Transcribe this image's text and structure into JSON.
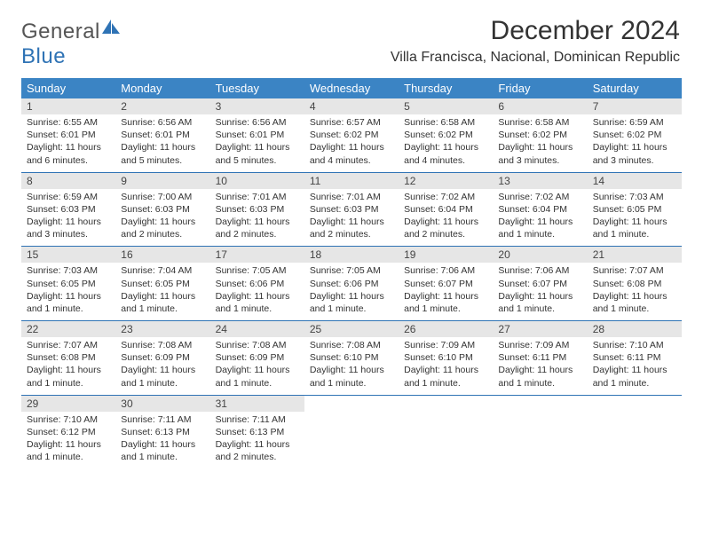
{
  "logo": {
    "part1": "General",
    "part2": "Blue"
  },
  "title": "December 2024",
  "subtitle": "Villa Francisca, Nacional, Dominican Republic",
  "colors": {
    "header_bg": "#3b84c4",
    "week_divider": "#2f73b5",
    "date_bg": "#e6e6e6",
    "logo_blue": "#2f73b5",
    "logo_gray": "#555555"
  },
  "days": [
    "Sunday",
    "Monday",
    "Tuesday",
    "Wednesday",
    "Thursday",
    "Friday",
    "Saturday"
  ],
  "weeks": [
    [
      {
        "n": "1",
        "sunrise": "6:55 AM",
        "sunset": "6:01 PM",
        "daylight": "11 hours and 6 minutes."
      },
      {
        "n": "2",
        "sunrise": "6:56 AM",
        "sunset": "6:01 PM",
        "daylight": "11 hours and 5 minutes."
      },
      {
        "n": "3",
        "sunrise": "6:56 AM",
        "sunset": "6:01 PM",
        "daylight": "11 hours and 5 minutes."
      },
      {
        "n": "4",
        "sunrise": "6:57 AM",
        "sunset": "6:02 PM",
        "daylight": "11 hours and 4 minutes."
      },
      {
        "n": "5",
        "sunrise": "6:58 AM",
        "sunset": "6:02 PM",
        "daylight": "11 hours and 4 minutes."
      },
      {
        "n": "6",
        "sunrise": "6:58 AM",
        "sunset": "6:02 PM",
        "daylight": "11 hours and 3 minutes."
      },
      {
        "n": "7",
        "sunrise": "6:59 AM",
        "sunset": "6:02 PM",
        "daylight": "11 hours and 3 minutes."
      }
    ],
    [
      {
        "n": "8",
        "sunrise": "6:59 AM",
        "sunset": "6:03 PM",
        "daylight": "11 hours and 3 minutes."
      },
      {
        "n": "9",
        "sunrise": "7:00 AM",
        "sunset": "6:03 PM",
        "daylight": "11 hours and 2 minutes."
      },
      {
        "n": "10",
        "sunrise": "7:01 AM",
        "sunset": "6:03 PM",
        "daylight": "11 hours and 2 minutes."
      },
      {
        "n": "11",
        "sunrise": "7:01 AM",
        "sunset": "6:03 PM",
        "daylight": "11 hours and 2 minutes."
      },
      {
        "n": "12",
        "sunrise": "7:02 AM",
        "sunset": "6:04 PM",
        "daylight": "11 hours and 2 minutes."
      },
      {
        "n": "13",
        "sunrise": "7:02 AM",
        "sunset": "6:04 PM",
        "daylight": "11 hours and 1 minute."
      },
      {
        "n": "14",
        "sunrise": "7:03 AM",
        "sunset": "6:05 PM",
        "daylight": "11 hours and 1 minute."
      }
    ],
    [
      {
        "n": "15",
        "sunrise": "7:03 AM",
        "sunset": "6:05 PM",
        "daylight": "11 hours and 1 minute."
      },
      {
        "n": "16",
        "sunrise": "7:04 AM",
        "sunset": "6:05 PM",
        "daylight": "11 hours and 1 minute."
      },
      {
        "n": "17",
        "sunrise": "7:05 AM",
        "sunset": "6:06 PM",
        "daylight": "11 hours and 1 minute."
      },
      {
        "n": "18",
        "sunrise": "7:05 AM",
        "sunset": "6:06 PM",
        "daylight": "11 hours and 1 minute."
      },
      {
        "n": "19",
        "sunrise": "7:06 AM",
        "sunset": "6:07 PM",
        "daylight": "11 hours and 1 minute."
      },
      {
        "n": "20",
        "sunrise": "7:06 AM",
        "sunset": "6:07 PM",
        "daylight": "11 hours and 1 minute."
      },
      {
        "n": "21",
        "sunrise": "7:07 AM",
        "sunset": "6:08 PM",
        "daylight": "11 hours and 1 minute."
      }
    ],
    [
      {
        "n": "22",
        "sunrise": "7:07 AM",
        "sunset": "6:08 PM",
        "daylight": "11 hours and 1 minute."
      },
      {
        "n": "23",
        "sunrise": "7:08 AM",
        "sunset": "6:09 PM",
        "daylight": "11 hours and 1 minute."
      },
      {
        "n": "24",
        "sunrise": "7:08 AM",
        "sunset": "6:09 PM",
        "daylight": "11 hours and 1 minute."
      },
      {
        "n": "25",
        "sunrise": "7:08 AM",
        "sunset": "6:10 PM",
        "daylight": "11 hours and 1 minute."
      },
      {
        "n": "26",
        "sunrise": "7:09 AM",
        "sunset": "6:10 PM",
        "daylight": "11 hours and 1 minute."
      },
      {
        "n": "27",
        "sunrise": "7:09 AM",
        "sunset": "6:11 PM",
        "daylight": "11 hours and 1 minute."
      },
      {
        "n": "28",
        "sunrise": "7:10 AM",
        "sunset": "6:11 PM",
        "daylight": "11 hours and 1 minute."
      }
    ],
    [
      {
        "n": "29",
        "sunrise": "7:10 AM",
        "sunset": "6:12 PM",
        "daylight": "11 hours and 1 minute."
      },
      {
        "n": "30",
        "sunrise": "7:11 AM",
        "sunset": "6:13 PM",
        "daylight": "11 hours and 1 minute."
      },
      {
        "n": "31",
        "sunrise": "7:11 AM",
        "sunset": "6:13 PM",
        "daylight": "11 hours and 2 minutes."
      },
      {
        "n": "",
        "sunrise": "",
        "sunset": "",
        "daylight": ""
      },
      {
        "n": "",
        "sunrise": "",
        "sunset": "",
        "daylight": ""
      },
      {
        "n": "",
        "sunrise": "",
        "sunset": "",
        "daylight": ""
      },
      {
        "n": "",
        "sunrise": "",
        "sunset": "",
        "daylight": ""
      }
    ]
  ],
  "labels": {
    "sunrise": "Sunrise: ",
    "sunset": "Sunset: ",
    "daylight": "Daylight: "
  }
}
